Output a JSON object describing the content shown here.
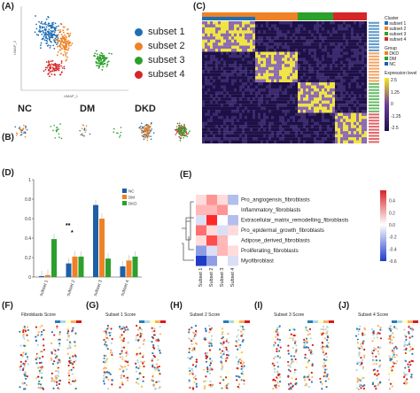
{
  "panels": {
    "A": {
      "label": "(A)",
      "xlabel": "UMAP_1",
      "ylabel": "UMAP_2"
    },
    "B": {
      "label": "(B)",
      "groups": [
        "NC",
        "DM",
        "DKD"
      ]
    },
    "C": {
      "label": "(C)",
      "legend_cluster_title": "Cluster",
      "legend_cluster_items": [
        "subset 1",
        "subset 2",
        "subset 3",
        "subset 4"
      ],
      "legend_group_title": "Group",
      "legend_group_items": [
        "DKD",
        "DM",
        "NC"
      ],
      "legend_expr_title": "Expression level",
      "legend_expr_ticks": [
        "2.5",
        "1.25",
        "0",
        "-1.25",
        "-2.5"
      ]
    },
    "D": {
      "label": "(D)",
      "sig": "**",
      "sig2": "*"
    },
    "E": {
      "label": "(E)"
    },
    "F": {
      "label": "(F)",
      "title": "Fibroblasts Score"
    },
    "G": {
      "label": "(G)",
      "title": "Subset 1 Score"
    },
    "H": {
      "label": "(H)",
      "title": "Subset 2 Score"
    },
    "I": {
      "label": "(I)",
      "title": "Subset 3 Score"
    },
    "J": {
      "label": "(J)",
      "title": "Subset 4 Score"
    }
  },
  "subsets": [
    {
      "name": "subset 1",
      "color": "#1f6fb5"
    },
    {
      "name": "subset 2",
      "color": "#ef8224"
    },
    {
      "name": "subset 3",
      "color": "#2ca02c"
    },
    {
      "name": "subset 4",
      "color": "#d62728"
    }
  ],
  "colors": {
    "NC": "#1f5fa8",
    "DM": "#ef8224",
    "DKD": "#2ca02c"
  },
  "chart_data": [
    {
      "type": "bar",
      "categories": [
        "subset 1",
        "subset 2",
        "subset 3",
        "subset 4"
      ],
      "series": [
        {
          "name": "NC",
          "values": [
            0.01,
            0.14,
            0.74,
            0.11
          ]
        },
        {
          "name": "DM",
          "values": [
            0.02,
            0.21,
            0.6,
            0.17
          ]
        },
        {
          "name": "DKD",
          "values": [
            0.39,
            0.21,
            0.19,
            0.21
          ]
        }
      ],
      "ylim": [
        0,
        1
      ],
      "yticks": [
        "0",
        "0.2",
        "0.4",
        "0.6",
        "0.8",
        "1"
      ]
    },
    {
      "type": "heatmap",
      "rows": [
        "Pro_angiogensis_fibroblasts",
        "Inflammatory_fibroblasts",
        "Extracellular_matrix_remodelling_fibroblasts",
        "Pro_epidermal_growth_fibroblasts",
        "Adipose_derived_fibroblasts",
        "Proliferating_fibroblasts",
        "Myofibroblast"
      ],
      "columns": [
        "Subset 1",
        "Subset 2",
        "Subset 3",
        "Subset 4"
      ],
      "values": [
        [
          0.1,
          0.3,
          0.1,
          -0.2
        ],
        [
          0.2,
          0.2,
          0.3,
          0.0
        ],
        [
          -0.1,
          0.6,
          0.0,
          -0.2
        ],
        [
          0.4,
          0.1,
          -0.1,
          0.1
        ],
        [
          0.1,
          0.5,
          0.2,
          0.0
        ],
        [
          -0.3,
          -0.1,
          0.2,
          0.1
        ],
        [
          -0.6,
          -0.3,
          0.0,
          -0.1
        ]
      ],
      "scale_ticks": [
        "0.6",
        "0.4",
        "0.2",
        "0.0",
        "-0.2",
        "-0.4",
        "-0.6"
      ],
      "vmin": -0.6,
      "vmax": 0.6
    }
  ]
}
